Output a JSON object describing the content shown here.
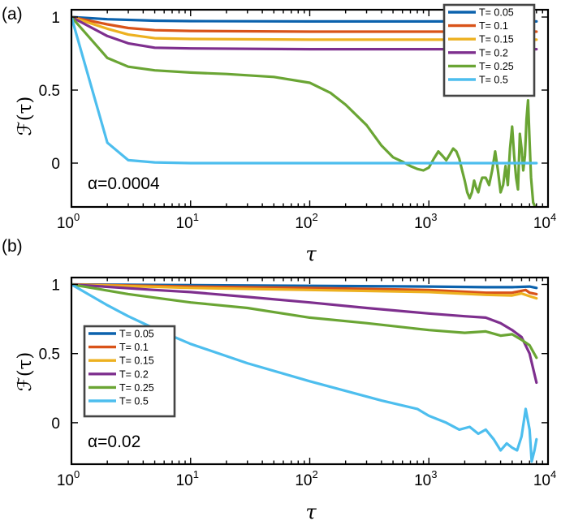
{
  "colors": {
    "T=0.05": "#0b62ad",
    "T=0.1": "#d95319",
    "T=0.15": "#edb120",
    "T=0.2": "#7e2f8e",
    "T=0.25": "#6aa534",
    "T=0.5": "#4dbeee"
  },
  "chart_data": [
    {
      "type": "line",
      "panel_label": "(a)",
      "xlabel": "τ",
      "ylabel": "ℱ(τ)",
      "xscale": "log",
      "xlim": [
        1,
        10000
      ],
      "ylim": [
        -0.3,
        1.05
      ],
      "x_ticks": [
        {
          "base": "10",
          "exp": "0"
        },
        {
          "base": "10",
          "exp": "1"
        },
        {
          "base": "10",
          "exp": "2"
        },
        {
          "base": "10",
          "exp": "3"
        },
        {
          "base": "10",
          "exp": "4"
        }
      ],
      "y_ticks": [
        "0",
        "0.5",
        "1"
      ],
      "annotation": "α=0.0004",
      "legend_position": "top-right",
      "series": [
        {
          "name": "T= 0.05",
          "color_key": "T=0.05",
          "points": [
            [
              1,
              1
            ],
            [
              2,
              0.985
            ],
            [
              5,
              0.975
            ],
            [
              10,
              0.972
            ],
            [
              100,
              0.97
            ],
            [
              1000,
              0.97
            ],
            [
              8000,
              0.97
            ]
          ]
        },
        {
          "name": "T= 0.1",
          "color_key": "T=0.1",
          "points": [
            [
              1,
              1
            ],
            [
              2,
              0.95
            ],
            [
              3,
              0.925
            ],
            [
              5,
              0.91
            ],
            [
              10,
              0.905
            ],
            [
              100,
              0.9
            ],
            [
              1000,
              0.9
            ],
            [
              8000,
              0.9
            ]
          ]
        },
        {
          "name": "T= 0.15",
          "color_key": "T=0.15",
          "points": [
            [
              1,
              1
            ],
            [
              2,
              0.92
            ],
            [
              3,
              0.88
            ],
            [
              5,
              0.855
            ],
            [
              10,
              0.85
            ],
            [
              100,
              0.845
            ],
            [
              1000,
              0.845
            ],
            [
              8000,
              0.845
            ]
          ]
        },
        {
          "name": "T= 0.2",
          "color_key": "T=0.2",
          "points": [
            [
              1,
              1
            ],
            [
              2,
              0.87
            ],
            [
              3,
              0.82
            ],
            [
              5,
              0.79
            ],
            [
              10,
              0.785
            ],
            [
              100,
              0.78
            ],
            [
              1000,
              0.78
            ],
            [
              8000,
              0.78
            ]
          ]
        },
        {
          "name": "T= 0.25",
          "color_key": "T=0.25",
          "points": [
            [
              1,
              1
            ],
            [
              2,
              0.72
            ],
            [
              3,
              0.66
            ],
            [
              5,
              0.635
            ],
            [
              10,
              0.62
            ],
            [
              20,
              0.61
            ],
            [
              50,
              0.59
            ],
            [
              100,
              0.55
            ],
            [
              150,
              0.48
            ],
            [
              200,
              0.4
            ],
            [
              300,
              0.26
            ],
            [
              400,
              0.12
            ],
            [
              500,
              0.04
            ],
            [
              600,
              0.01
            ],
            [
              700,
              -0.02
            ],
            [
              800,
              -0.04
            ],
            [
              900,
              -0.05
            ],
            [
              1000,
              -0.03
            ],
            [
              1100,
              0.03
            ],
            [
              1200,
              0.08
            ],
            [
              1300,
              0.05
            ],
            [
              1400,
              0.02
            ],
            [
              1500,
              0.06
            ],
            [
              1600,
              0.1
            ],
            [
              1700,
              0.08
            ],
            [
              1800,
              0.03
            ],
            [
              1900,
              -0.05
            ],
            [
              2000,
              -0.12
            ],
            [
              2100,
              -0.2
            ],
            [
              2200,
              -0.24
            ],
            [
              2300,
              -0.2
            ],
            [
              2400,
              -0.12
            ],
            [
              2500,
              -0.17
            ],
            [
              2600,
              -0.2
            ],
            [
              2700,
              -0.14
            ],
            [
              2800,
              -0.1
            ],
            [
              3000,
              -0.1
            ],
            [
              3200,
              -0.15
            ],
            [
              3400,
              -0.05
            ],
            [
              3600,
              0.08
            ],
            [
              3800,
              -0.05
            ],
            [
              4000,
              -0.2
            ],
            [
              4200,
              -0.15
            ],
            [
              4400,
              -0.02
            ],
            [
              4600,
              -0.15
            ],
            [
              4800,
              0.1
            ],
            [
              5000,
              0.25
            ],
            [
              5200,
              0.05
            ],
            [
              5400,
              -0.1
            ],
            [
              5600,
              -0.18
            ],
            [
              5800,
              0.2
            ],
            [
              6000,
              0.1
            ],
            [
              6200,
              -0.05
            ],
            [
              6400,
              0.05
            ],
            [
              6600,
              0.3
            ],
            [
              6800,
              0.43
            ],
            [
              7000,
              0.15
            ],
            [
              7200,
              -0.1
            ],
            [
              7500,
              -0.27
            ],
            [
              7800,
              -0.3
            ]
          ]
        },
        {
          "name": "T= 0.5",
          "color_key": "T=0.5",
          "points": [
            [
              1,
              1
            ],
            [
              2,
              0.14
            ],
            [
              3,
              0.02
            ],
            [
              5,
              0.005
            ],
            [
              10,
              0
            ],
            [
              100,
              0
            ],
            [
              1000,
              0
            ],
            [
              8000,
              0
            ]
          ]
        }
      ]
    },
    {
      "type": "line",
      "panel_label": "(b)",
      "xlabel": "τ",
      "ylabel": "ℱ(τ)",
      "xscale": "log",
      "xlim": [
        1,
        10000
      ],
      "ylim": [
        -0.3,
        1.05
      ],
      "x_ticks": [
        {
          "base": "10",
          "exp": "0"
        },
        {
          "base": "10",
          "exp": "1"
        },
        {
          "base": "10",
          "exp": "2"
        },
        {
          "base": "10",
          "exp": "3"
        },
        {
          "base": "10",
          "exp": "4"
        }
      ],
      "y_ticks": [
        "0",
        "0.5",
        "1"
      ],
      "annotation": "α=0.02",
      "legend_position": "center-left",
      "series": [
        {
          "name": "T= 0.05",
          "color_key": "T=0.05",
          "points": [
            [
              1,
              1
            ],
            [
              10,
              0.995
            ],
            [
              100,
              0.99
            ],
            [
              1000,
              0.985
            ],
            [
              3000,
              0.98
            ],
            [
              5000,
              0.98
            ],
            [
              7000,
              0.985
            ],
            [
              8000,
              0.975
            ]
          ]
        },
        {
          "name": "T= 0.1",
          "color_key": "T=0.1",
          "points": [
            [
              1,
              1
            ],
            [
              10,
              0.985
            ],
            [
              100,
              0.975
            ],
            [
              1000,
              0.96
            ],
            [
              3000,
              0.94
            ],
            [
              5000,
              0.94
            ],
            [
              6500,
              0.96
            ],
            [
              7000,
              0.94
            ],
            [
              8000,
              0.93
            ]
          ]
        },
        {
          "name": "T= 0.15",
          "color_key": "T=0.15",
          "points": [
            [
              1,
              1
            ],
            [
              10,
              0.975
            ],
            [
              100,
              0.96
            ],
            [
              1000,
              0.945
            ],
            [
              3000,
              0.925
            ],
            [
              5000,
              0.92
            ],
            [
              6000,
              0.935
            ],
            [
              7000,
              0.915
            ],
            [
              8000,
              0.9
            ]
          ]
        },
        {
          "name": "T= 0.2",
          "color_key": "T=0.2",
          "points": [
            [
              1,
              1
            ],
            [
              5,
              0.96
            ],
            [
              10,
              0.945
            ],
            [
              30,
              0.91
            ],
            [
              100,
              0.87
            ],
            [
              300,
              0.83
            ],
            [
              1000,
              0.79
            ],
            [
              2000,
              0.77
            ],
            [
              3000,
              0.76
            ],
            [
              4000,
              0.72
            ],
            [
              5000,
              0.67
            ],
            [
              6000,
              0.62
            ],
            [
              7000,
              0.5
            ],
            [
              8000,
              0.29
            ]
          ]
        },
        {
          "name": "T= 0.25",
          "color_key": "T=0.25",
          "points": [
            [
              1,
              1
            ],
            [
              3,
              0.93
            ],
            [
              10,
              0.87
            ],
            [
              30,
              0.83
            ],
            [
              100,
              0.76
            ],
            [
              300,
              0.72
            ],
            [
              1000,
              0.67
            ],
            [
              2000,
              0.65
            ],
            [
              3000,
              0.66
            ],
            [
              4000,
              0.63
            ],
            [
              5000,
              0.64
            ],
            [
              6000,
              0.6
            ],
            [
              7000,
              0.56
            ],
            [
              8000,
              0.47
            ]
          ]
        },
        {
          "name": "T= 0.5",
          "color_key": "T=0.5",
          "points": [
            [
              1,
              1
            ],
            [
              2,
              0.85
            ],
            [
              3,
              0.77
            ],
            [
              5,
              0.68
            ],
            [
              10,
              0.57
            ],
            [
              30,
              0.43
            ],
            [
              100,
              0.3
            ],
            [
              200,
              0.23
            ],
            [
              400,
              0.16
            ],
            [
              800,
              0.1
            ],
            [
              1000,
              0.05
            ],
            [
              1400,
              0
            ],
            [
              1800,
              -0.05
            ],
            [
              2200,
              -0.03
            ],
            [
              2600,
              -0.08
            ],
            [
              3000,
              -0.05
            ],
            [
              3500,
              -0.12
            ],
            [
              4000,
              -0.2
            ],
            [
              4500,
              -0.15
            ],
            [
              5000,
              -0.18
            ],
            [
              5500,
              -0.2
            ],
            [
              6000,
              -0.1
            ],
            [
              6500,
              0.1
            ],
            [
              7000,
              -0.05
            ],
            [
              7300,
              -0.28
            ],
            [
              7700,
              -0.2
            ],
            [
              8000,
              -0.12
            ]
          ]
        }
      ]
    }
  ]
}
